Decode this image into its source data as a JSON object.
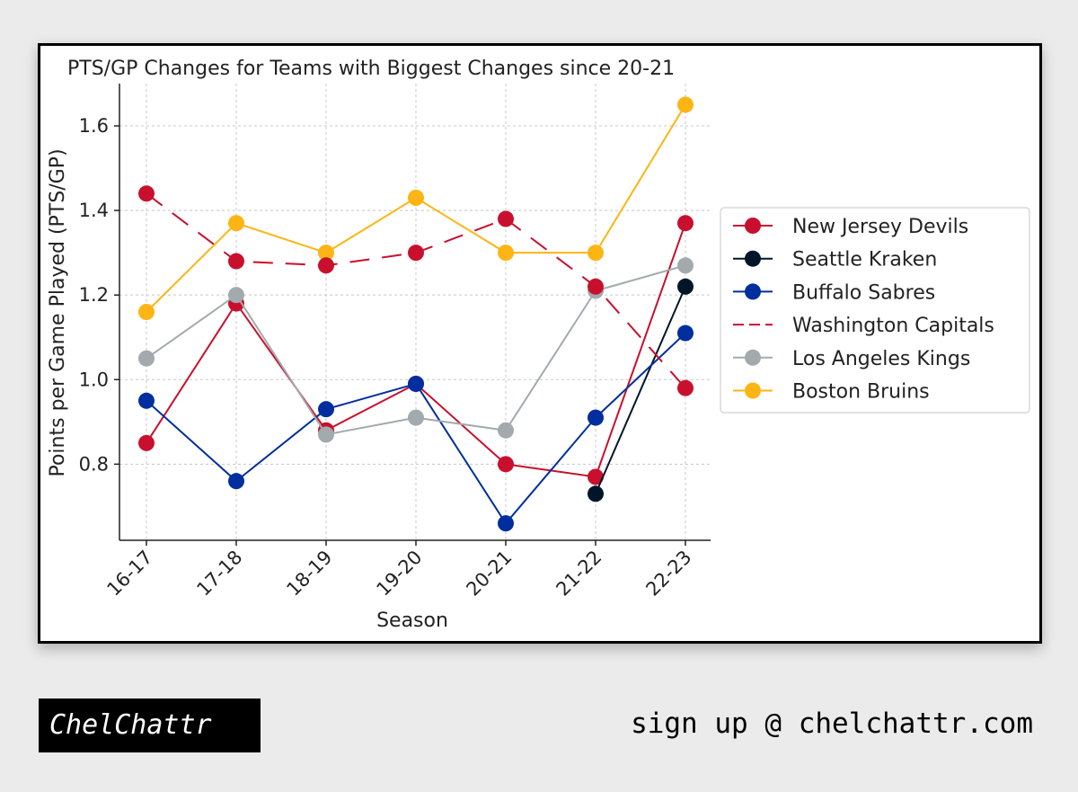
{
  "chart_data": {
    "type": "line",
    "title": "PTS/GP Changes for Teams with Biggest Changes since 20-21",
    "xlabel": "Season",
    "ylabel": "Points per Game Played (PTS/GP)",
    "categories": [
      "16-17",
      "17-18",
      "18-19",
      "19-20",
      "20-21",
      "21-22",
      "22-23"
    ],
    "ylim": [
      0.62,
      1.7
    ],
    "yticks": [
      "0.8",
      "1.0",
      "1.2",
      "1.4",
      "1.6"
    ],
    "grid": true,
    "legend_position": "center-right",
    "series": [
      {
        "name": "New Jersey Devils",
        "color": "#c8102e",
        "dash": false,
        "values": [
          0.85,
          1.18,
          0.88,
          0.99,
          0.8,
          0.77,
          1.37
        ]
      },
      {
        "name": "Seattle Kraken",
        "color": "#001628",
        "dash": false,
        "values": [
          null,
          null,
          null,
          null,
          null,
          0.73,
          1.22
        ]
      },
      {
        "name": "Buffalo Sabres",
        "color": "#002e9e",
        "dash": false,
        "values": [
          0.95,
          0.76,
          0.93,
          0.99,
          0.66,
          0.91,
          1.11
        ]
      },
      {
        "name": "Washington Capitals",
        "color": "#c8102e",
        "dash": true,
        "values": [
          1.44,
          1.28,
          1.27,
          1.3,
          1.38,
          1.22,
          0.98
        ]
      },
      {
        "name": "Los Angeles Kings",
        "color": "#a2aaad",
        "dash": false,
        "values": [
          1.05,
          1.2,
          0.87,
          0.91,
          0.88,
          1.21,
          1.27
        ]
      },
      {
        "name": "Boston Bruins",
        "color": "#fcb514",
        "dash": false,
        "values": [
          1.16,
          1.37,
          1.3,
          1.43,
          1.3,
          1.3,
          1.65
        ]
      }
    ]
  },
  "footer": {
    "brand": "ChelChattr",
    "signup": "sign up @ chelchattr.com"
  }
}
